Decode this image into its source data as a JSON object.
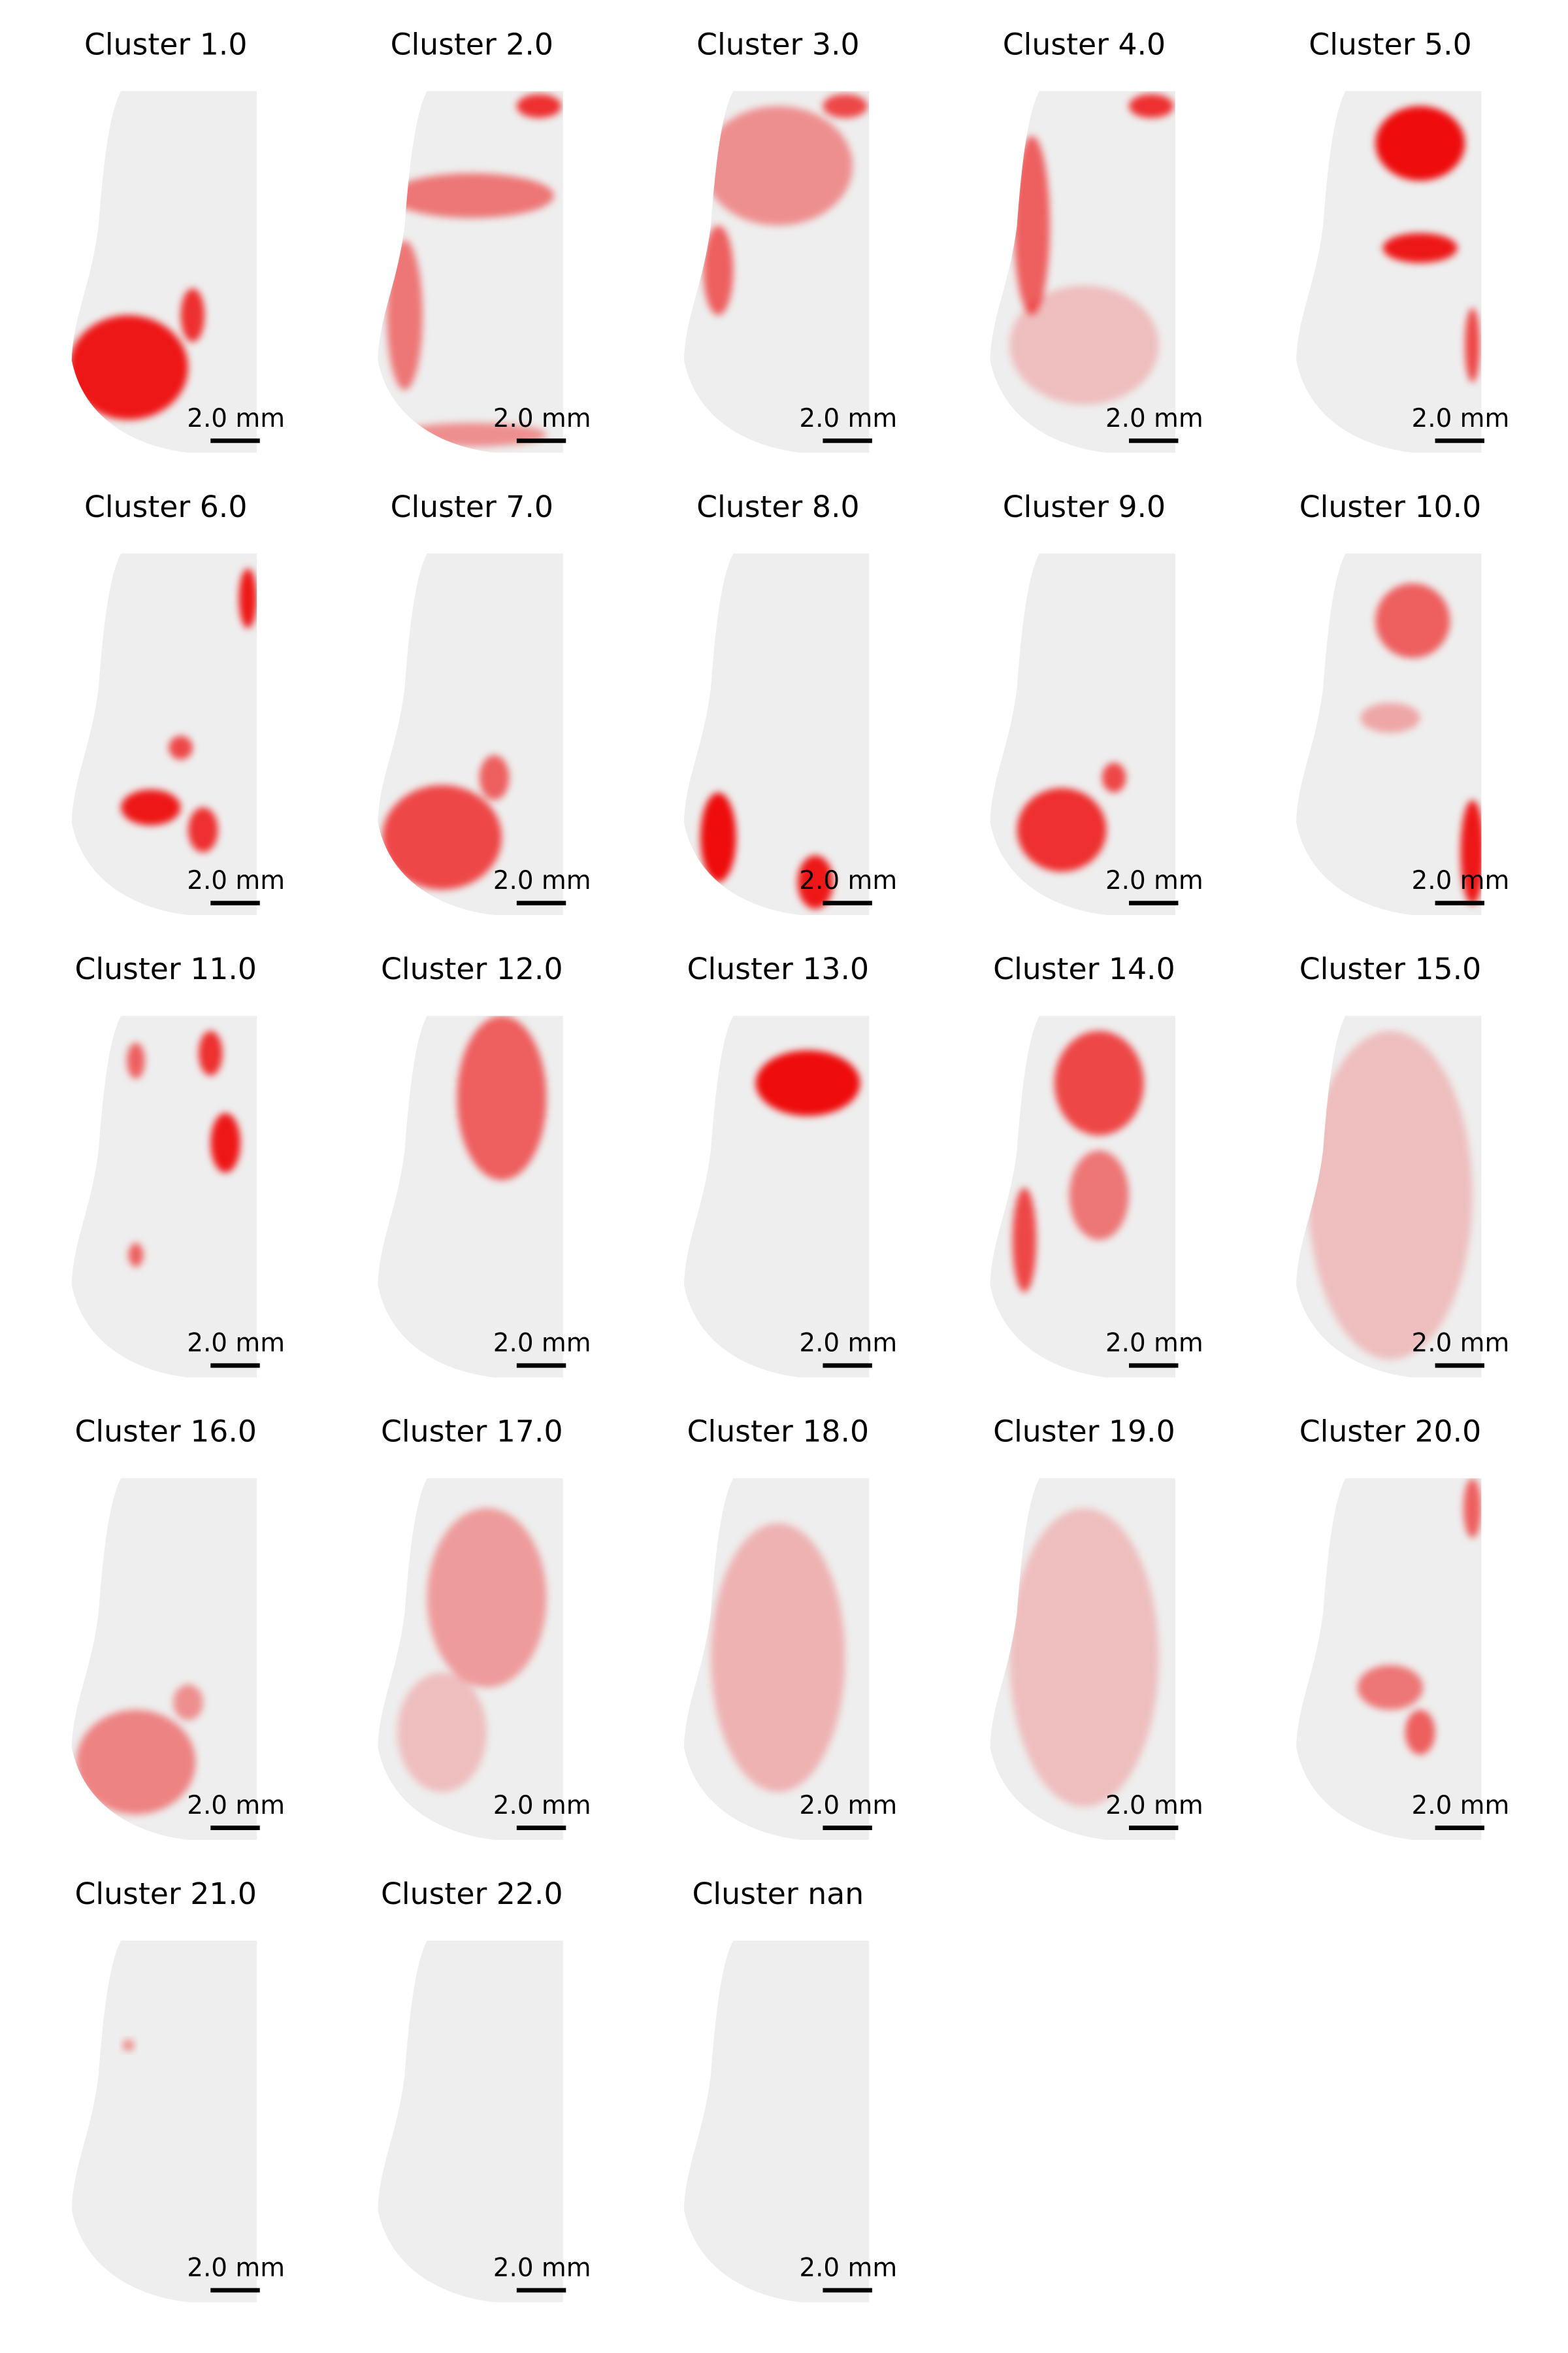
{
  "panels": [
    {
      "title": "Cluster 1.0",
      "scale_label": "2.0 mm"
    },
    {
      "title": "Cluster 2.0",
      "scale_label": "2.0 mm"
    },
    {
      "title": "Cluster 3.0",
      "scale_label": "2.0 mm"
    },
    {
      "title": "Cluster 4.0",
      "scale_label": "2.0 mm"
    },
    {
      "title": "Cluster 5.0",
      "scale_label": "2.0 mm"
    },
    {
      "title": "Cluster 6.0",
      "scale_label": "2.0 mm"
    },
    {
      "title": "Cluster 7.0",
      "scale_label": "2.0 mm"
    },
    {
      "title": "Cluster 8.0",
      "scale_label": "2.0 mm"
    },
    {
      "title": "Cluster 9.0",
      "scale_label": "2.0 mm"
    },
    {
      "title": "Cluster 10.0",
      "scale_label": "2.0 mm"
    },
    {
      "title": "Cluster 11.0",
      "scale_label": "2.0 mm"
    },
    {
      "title": "Cluster 12.0",
      "scale_label": "2.0 mm"
    },
    {
      "title": "Cluster 13.0",
      "scale_label": "2.0 mm"
    },
    {
      "title": "Cluster 14.0",
      "scale_label": "2.0 mm"
    },
    {
      "title": "Cluster 15.0",
      "scale_label": "2.0 mm"
    },
    {
      "title": "Cluster 16.0",
      "scale_label": "2.0 mm"
    },
    {
      "title": "Cluster 17.0",
      "scale_label": "2.0 mm"
    },
    {
      "title": "Cluster 18.0",
      "scale_label": "2.0 mm"
    },
    {
      "title": "Cluster 19.0",
      "scale_label": "2.0 mm"
    },
    {
      "title": "Cluster 20.0",
      "scale_label": "2.0 mm"
    },
    {
      "title": "Cluster 21.0",
      "scale_label": "2.0 mm"
    },
    {
      "title": "Cluster 22.0",
      "scale_label": "2.0 mm"
    },
    {
      "title": "Cluster nan",
      "scale_label": "2.0 mm"
    }
  ]
}
